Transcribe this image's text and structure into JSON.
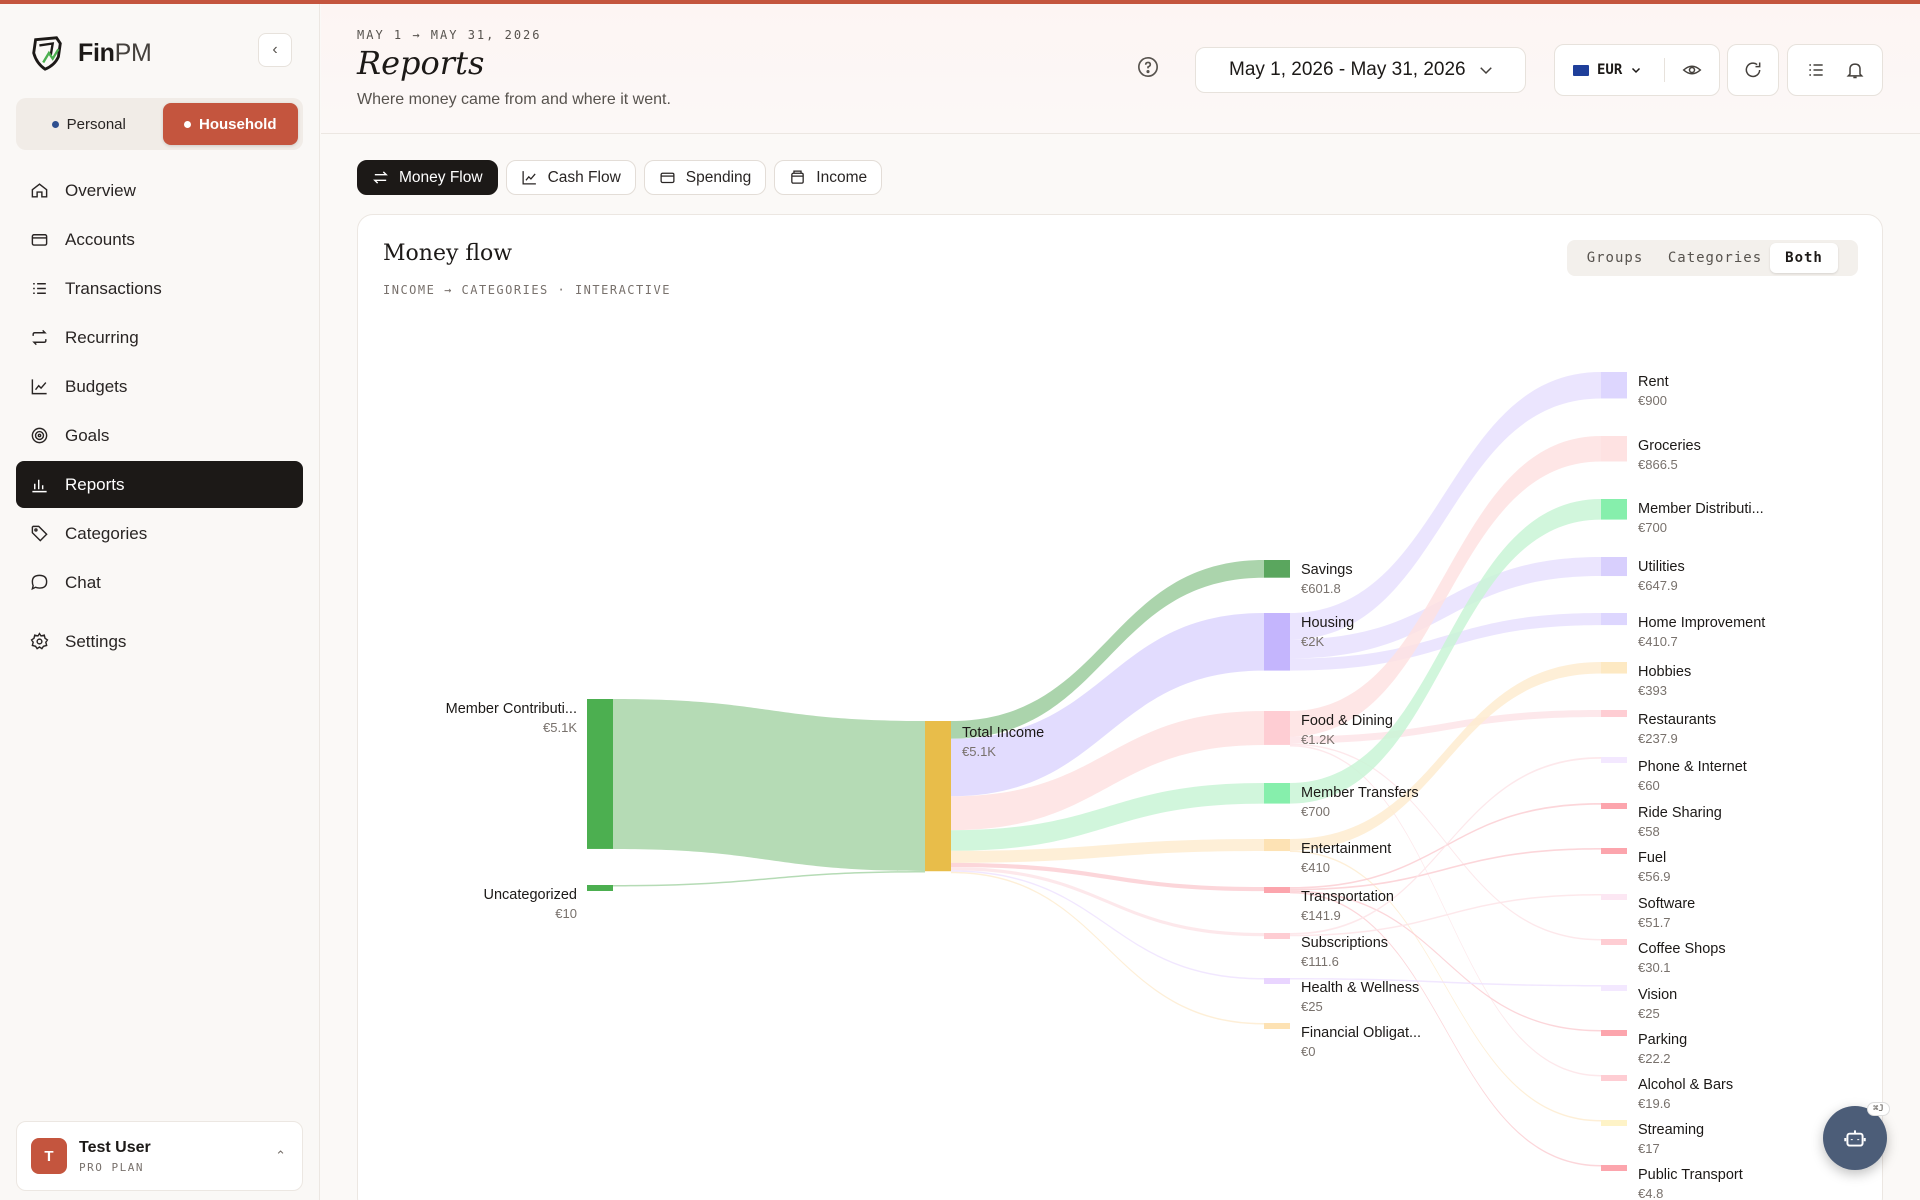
{
  "app": {
    "name_main": "Fin",
    "name_suffix": "PM"
  },
  "workspace": {
    "personal": "Personal",
    "household": "Household",
    "active": "household"
  },
  "nav": [
    {
      "id": "overview",
      "label": "Overview",
      "icon": "home-icon"
    },
    {
      "id": "accounts",
      "label": "Accounts",
      "icon": "wallet-icon"
    },
    {
      "id": "transactions",
      "label": "Transactions",
      "icon": "list-icon"
    },
    {
      "id": "recurring",
      "label": "Recurring",
      "icon": "repeat-icon"
    },
    {
      "id": "budgets",
      "label": "Budgets",
      "icon": "line-chart-icon"
    },
    {
      "id": "goals",
      "label": "Goals",
      "icon": "target-icon"
    },
    {
      "id": "reports",
      "label": "Reports",
      "icon": "bar-chart-icon",
      "active": true
    },
    {
      "id": "categories",
      "label": "Categories",
      "icon": "tag-icon"
    },
    {
      "id": "chat",
      "label": "Chat",
      "icon": "chat-bubble-icon"
    },
    {
      "id": "settings",
      "label": "Settings",
      "icon": "gear-icon"
    }
  ],
  "user": {
    "initial": "T",
    "name": "Test User",
    "plan": "PRO PLAN"
  },
  "header": {
    "kicker": "MAY 1 → MAY 31, 2026",
    "title": "Reports",
    "subtitle": "Where money came from and where it went.",
    "date_range": "May 1, 2026 - May 31, 2026",
    "currency": "EUR"
  },
  "tabs": [
    {
      "label": "Money Flow",
      "active": true,
      "icon": "arrows-swap-icon"
    },
    {
      "label": "Cash Flow",
      "icon": "line-chart-icon"
    },
    {
      "label": "Spending",
      "icon": "card-icon"
    },
    {
      "label": "Income",
      "icon": "wallet-icon"
    }
  ],
  "card": {
    "title": "Money flow",
    "subtitle": "INCOME → CATEGORIES · INTERACTIVE",
    "view_modes": [
      "Groups",
      "Categories",
      "Both"
    ],
    "active_mode": "Both"
  },
  "chart_data": {
    "type": "sankey",
    "nodes": [
      {
        "id": "member_contrib",
        "label": "Member Contributi...",
        "value_label": "€5.1K",
        "value": 5100,
        "color": "#4caf50",
        "column": 0
      },
      {
        "id": "uncategorized",
        "label": "Uncategorized",
        "value_label": "€10",
        "value": 10,
        "color": "#4caf50",
        "column": 0
      },
      {
        "id": "total_income",
        "label": "Total Income",
        "value_label": "€5.1K",
        "value": 5110,
        "color": "#e8bd4a",
        "column": 1
      },
      {
        "id": "savings",
        "label": "Savings",
        "value_label": "€601.8",
        "value": 601.8,
        "color": "#5aa65e",
        "column": 2
      },
      {
        "id": "housing",
        "label": "Housing",
        "value_label": "€2K",
        "value": 1958.6,
        "color": "#c4b5fd",
        "column": 2
      },
      {
        "id": "food",
        "label": "Food & Dining",
        "value_label": "€1.2K",
        "value": 1154.5,
        "color": "#fecdd3",
        "column": 2
      },
      {
        "id": "member_transfers",
        "label": "Member Transfers",
        "value_label": "€700",
        "value": 700,
        "color": "#86efac",
        "column": 2
      },
      {
        "id": "entertainment",
        "label": "Entertainment",
        "value_label": "€410",
        "value": 410,
        "color": "#fde2b4",
        "column": 2
      },
      {
        "id": "transportation",
        "label": "Transportation",
        "value_label": "€141.9",
        "value": 141.9,
        "color": "#fca5ad",
        "column": 2
      },
      {
        "id": "subscriptions",
        "label": "Subscriptions",
        "value_label": "€111.6",
        "value": 111.6,
        "color": "#fecdd3",
        "column": 2
      },
      {
        "id": "health",
        "label": "Health & Wellness",
        "value_label": "€25",
        "value": 25,
        "color": "#e9d5ff",
        "column": 2
      },
      {
        "id": "financial",
        "label": "Financial Obligat...",
        "value_label": "€0",
        "value": 0,
        "color": "#fde2b4",
        "column": 2
      },
      {
        "id": "rent",
        "label": "Rent",
        "value_label": "€900",
        "value": 900,
        "color": "#ddd6fe",
        "column": 3
      },
      {
        "id": "groceries",
        "label": "Groceries",
        "value_label": "€866.5",
        "value": 866.5,
        "color": "#fee2e2",
        "column": 3
      },
      {
        "id": "member_dist",
        "label": "Member Distributi...",
        "value_label": "€700",
        "value": 700,
        "color": "#86efac",
        "column": 3
      },
      {
        "id": "utilities",
        "label": "Utilities",
        "value_label": "€647.9",
        "value": 647.9,
        "color": "#d8cffd",
        "column": 3
      },
      {
        "id": "home_improve",
        "label": "Home Improvement",
        "value_label": "€410.7",
        "value": 410.7,
        "color": "#ddd6fe",
        "column": 3
      },
      {
        "id": "hobbies",
        "label": "Hobbies",
        "value_label": "€393",
        "value": 393,
        "color": "#fde9c3",
        "column": 3
      },
      {
        "id": "restaurants",
        "label": "Restaurants",
        "value_label": "€237.9",
        "value": 237.9,
        "color": "#fecdd3",
        "column": 3
      },
      {
        "id": "phone",
        "label": "Phone & Internet",
        "value_label": "€60",
        "value": 60,
        "color": "#f3e8ff",
        "column": 3
      },
      {
        "id": "ride",
        "label": "Ride Sharing",
        "value_label": "€58",
        "value": 58,
        "color": "#fca5ad",
        "column": 3
      },
      {
        "id": "fuel",
        "label": "Fuel",
        "value_label": "€56.9",
        "value": 56.9,
        "color": "#fca5ad",
        "column": 3
      },
      {
        "id": "software",
        "label": "Software",
        "value_label": "€51.7",
        "value": 51.7,
        "color": "#fce7f3",
        "column": 3
      },
      {
        "id": "coffee",
        "label": "Coffee Shops",
        "value_label": "€30.1",
        "value": 30.1,
        "color": "#fecdd3",
        "column": 3
      },
      {
        "id": "vision",
        "label": "Vision",
        "value_label": "€25",
        "value": 25,
        "color": "#f3e8ff",
        "column": 3
      },
      {
        "id": "parking",
        "label": "Parking",
        "value_label": "€22.2",
        "value": 22.2,
        "color": "#fca5ad",
        "column": 3
      },
      {
        "id": "alcohol",
        "label": "Alcohol & Bars",
        "value_label": "€19.6",
        "value": 19.6,
        "color": "#fecdd3",
        "column": 3
      },
      {
        "id": "streaming",
        "label": "Streaming",
        "value_label": "€17",
        "value": 17,
        "color": "#fef3c7",
        "column": 3
      },
      {
        "id": "public_transport",
        "label": "Public Transport",
        "value_label": "€4.8",
        "value": 4.8,
        "color": "#fca5ad",
        "column": 3
      }
    ],
    "links": [
      {
        "source": "member_contrib",
        "target": "total_income",
        "value": 5100,
        "color": "#a8d5a8"
      },
      {
        "source": "uncategorized",
        "target": "total_income",
        "value": 10,
        "color": "#a8d5a8"
      },
      {
        "source": "total_income",
        "target": "savings",
        "value": 601.8,
        "color": "#9ccc9e"
      },
      {
        "source": "total_income",
        "target": "housing",
        "value": 1958.6,
        "color": "#ddd6fe"
      },
      {
        "source": "total_income",
        "target": "food",
        "value": 1154.5,
        "color": "#fee2e2"
      },
      {
        "source": "total_income",
        "target": "member_transfers",
        "value": 700,
        "color": "#c9f5d6"
      },
      {
        "source": "total_income",
        "target": "entertainment",
        "value": 410,
        "color": "#feecd0"
      },
      {
        "source": "total_income",
        "target": "transportation",
        "value": 141.9,
        "color": "#fbcfd4"
      },
      {
        "source": "total_income",
        "target": "subscriptions",
        "value": 111.6,
        "color": "#fde4e8"
      },
      {
        "source": "total_income",
        "target": "health",
        "value": 25,
        "color": "#efe3ff"
      },
      {
        "source": "total_income",
        "target": "financial",
        "value": 0,
        "color": "#feecd0"
      },
      {
        "source": "housing",
        "target": "rent",
        "value": 900,
        "color": "#e7e0fe"
      },
      {
        "source": "housing",
        "target": "utilities",
        "value": 647.9,
        "color": "#e7e0fe"
      },
      {
        "source": "housing",
        "target": "home_improve",
        "value": 410.7,
        "color": "#e7e0fe"
      },
      {
        "source": "food",
        "target": "groceries",
        "value": 866.5,
        "color": "#fee2e2"
      },
      {
        "source": "food",
        "target": "restaurants",
        "value": 237.9,
        "color": "#fde4e8"
      },
      {
        "source": "food",
        "target": "coffee",
        "value": 30.1,
        "color": "#fde4e8"
      },
      {
        "source": "food",
        "target": "alcohol",
        "value": 19.6,
        "color": "#fde4e8"
      },
      {
        "source": "member_transfers",
        "target": "member_dist",
        "value": 700,
        "color": "#c9f5d6"
      },
      {
        "source": "entertainment",
        "target": "hobbies",
        "value": 393,
        "color": "#feecd0"
      },
      {
        "source": "entertainment",
        "target": "streaming",
        "value": 17,
        "color": "#feecd0"
      },
      {
        "source": "transportation",
        "target": "ride",
        "value": 58,
        "color": "#fbcfd4"
      },
      {
        "source": "transportation",
        "target": "fuel",
        "value": 56.9,
        "color": "#fbcfd4"
      },
      {
        "source": "transportation",
        "target": "parking",
        "value": 22.2,
        "color": "#fbcfd4"
      },
      {
        "source": "transportation",
        "target": "public_transport",
        "value": 4.8,
        "color": "#fbcfd4"
      },
      {
        "source": "subscriptions",
        "target": "phone",
        "value": 60,
        "color": "#fde4e8"
      },
      {
        "source": "subscriptions",
        "target": "software",
        "value": 51.7,
        "color": "#fde4e8"
      },
      {
        "source": "health",
        "target": "vision",
        "value": 25,
        "color": "#efe3ff"
      }
    ]
  }
}
